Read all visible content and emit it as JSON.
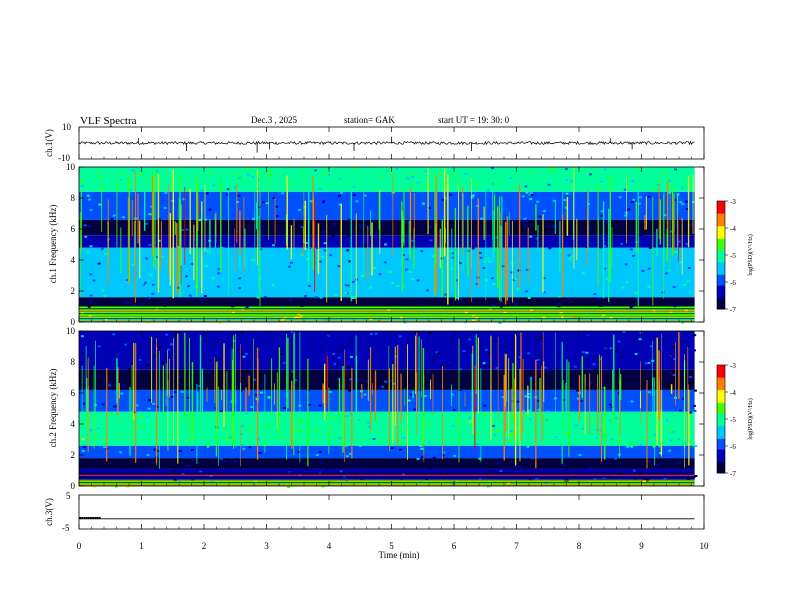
{
  "header": {
    "title": "VLF Spectra",
    "date": "Dec.3 , 2025",
    "station": "station= GAK",
    "start": "start UT = 19: 30: 0"
  },
  "colors": {
    "cmap": [
      "#000040",
      "#0000b4",
      "#0050ff",
      "#00c8ff",
      "#00ff9a",
      "#44ff00",
      "#ffff00",
      "#ff8000",
      "#ff0000",
      "#ffffff"
    ]
  },
  "chart_data": [
    {
      "type": "line",
      "name": "ch1-waveform",
      "ylabel": "ch.1(V)",
      "ylim": [
        -10,
        10
      ],
      "yticks": [
        "10",
        "-10"
      ],
      "baseline": 0,
      "spikes": [
        {
          "t": 0.95,
          "v": 3
        },
        {
          "t": 1.72,
          "v": -5
        },
        {
          "t": 2.85,
          "v": -6
        },
        {
          "t": 3.05,
          "v": -4
        },
        {
          "t": 4.4,
          "v": -5
        },
        {
          "t": 5.0,
          "v": 4
        },
        {
          "t": 6.28,
          "v": -5
        },
        {
          "t": 8.5,
          "v": 3
        },
        {
          "t": 8.85,
          "v": -4
        }
      ]
    },
    {
      "type": "heatmap",
      "name": "ch1-spectrogram",
      "ylabel": "ch.1 Frequency (kHz)",
      "ylim": [
        0,
        10
      ],
      "yticks": [
        "0",
        "2",
        "4",
        "6",
        "8",
        "10"
      ],
      "xlim": [
        0,
        9.85
      ],
      "bands": [
        {
          "f0": 0,
          "f1": 0.3,
          "level": 0.55
        },
        {
          "f0": 0.3,
          "f1": 1.0,
          "level": 0.62
        },
        {
          "f0": 1.0,
          "f1": 1.6,
          "level": 0.05
        },
        {
          "f0": 1.6,
          "f1": 4.8,
          "level": 0.38
        },
        {
          "f0": 4.8,
          "f1": 5.6,
          "level": 0.22
        },
        {
          "f0": 5.6,
          "f1": 6.6,
          "level": 0.08
        },
        {
          "f0": 6.6,
          "f1": 8.4,
          "level": 0.32
        },
        {
          "f0": 8.4,
          "f1": 10,
          "level": 0.48
        }
      ],
      "colorbar": {
        "label": "log(PSD)(V²/Hz)",
        "ticks": [
          "-3",
          "-4",
          "-5",
          "-6",
          "-7"
        ],
        "range": [
          -7,
          -3
        ]
      }
    },
    {
      "type": "heatmap",
      "name": "ch2-spectrogram",
      "ylabel": "ch.2 Frequency (kHz)",
      "ylim": [
        0,
        10
      ],
      "yticks": [
        "0",
        "2",
        "4",
        "6",
        "8",
        "10"
      ],
      "xlim": [
        0,
        9.85
      ],
      "bands": [
        {
          "f0": 0,
          "f1": 0.4,
          "level": 0.6
        },
        {
          "f0": 0.4,
          "f1": 1.1,
          "level": 0.15
        },
        {
          "f0": 1.1,
          "f1": 1.8,
          "level": 0.05
        },
        {
          "f0": 1.8,
          "f1": 2.6,
          "level": 0.3
        },
        {
          "f0": 2.6,
          "f1": 4.8,
          "level": 0.5
        },
        {
          "f0": 4.8,
          "f1": 6.2,
          "level": 0.3
        },
        {
          "f0": 6.2,
          "f1": 7.5,
          "level": 0.1
        },
        {
          "f0": 7.5,
          "f1": 10,
          "level": 0.18
        }
      ],
      "colorbar": {
        "label": "log(PSD)(V²/Hz)",
        "ticks": [
          "-3",
          "-4",
          "-5",
          "-6",
          "-7"
        ],
        "range": [
          -7,
          -3
        ]
      }
    },
    {
      "type": "line",
      "name": "ch3-waveform",
      "ylabel": "ch.3(V)",
      "ylim": [
        -5,
        5
      ],
      "yticks": [
        "5",
        "-5"
      ],
      "baseline": -2
    }
  ],
  "xaxis": {
    "label": "Time (min)",
    "ticks": [
      "0",
      "1",
      "2",
      "3",
      "4",
      "5",
      "6",
      "7",
      "8",
      "9",
      "10"
    ],
    "xlim": [
      0,
      10
    ]
  }
}
